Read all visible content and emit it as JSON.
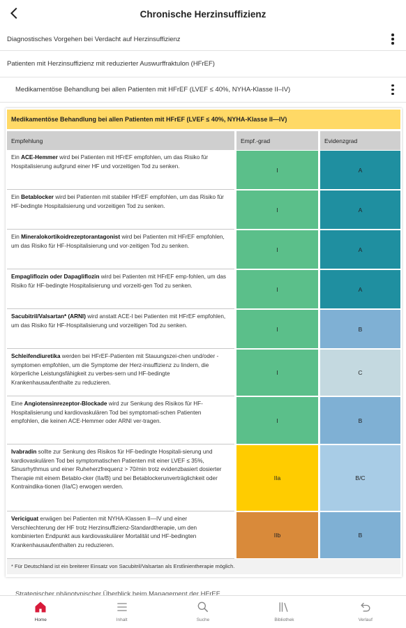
{
  "header": {
    "title": "Chronische Herzinsuffizienz"
  },
  "breadcrumbs": [
    {
      "label": "Diagnostisches Vorgehen bei Verdacht auf Herzinsuffizienz"
    },
    {
      "label": "Patienten mit Herzinsuffizienz mit reduzierter Auswurffraktulon (HFrEF)"
    },
    {
      "label": "Medikamentöse Behandlung bei allen Patienten mit HFrEF (LVEF ≤ 40%, NYHA-Klasse II–IV)"
    }
  ],
  "table": {
    "title": "Medikamentöse Behandlung bei allen Patienten mit HFrEF (LVEF ≤ 40%, NYHA-Klasse II—IV)",
    "headers": [
      "Empfehlung",
      "Empf.-grad",
      "Evidenzgrad"
    ],
    "rows": [
      {
        "bold": "ACE-Hemmer",
        "pre": "Ein ",
        "text": " wird bei Patienten mit HFrEF empfohlen, um das Risiko für Hospitalisierung aufgrund einer HF und vorzeitigen Tod zu senken.",
        "grade": "I",
        "evidence": "A"
      },
      {
        "bold": "Betablocker",
        "pre": "Ein ",
        "text": " wird bei Patienten mit stabiler HFrEF empfohlen, um das Risiko für HF-bedingte Hospitalisierung und vorzeitigen Tod zu senken.",
        "grade": "I",
        "evidence": "A"
      },
      {
        "bold": "Mineralokortikoidrezeptorantagonist",
        "pre": "Ein ",
        "text": " wird bei Patienten mit HFrEF empfohlen, um das Risiko für HF-Hospitalisierung und vor-zeitigen Tod zu senken.",
        "grade": "I",
        "evidence": "A"
      },
      {
        "bold": "Empagliflozin oder Dapagliflozin",
        "pre": "",
        "text": " wird bei Patienten mit HFrEF emp-fohlen, um das Risiko für HF-bedingte Hospitalisierung und vorzeiti-gen Tod zu senken.",
        "grade": "I",
        "evidence": "A"
      },
      {
        "bold": "Sacubitril/Valsartan* (ARNI)",
        "pre": "",
        "text": " wird anstatt ACE-I bei Patienten mit HFrEF empfohlen, um das Risiko für HF-Hospitalisierung und vorzeitigen Tod zu senken.",
        "grade": "I",
        "evidence": "B"
      },
      {
        "bold": "Schleifendiuretika",
        "pre": "",
        "text": " werden bei HFrEF-Patienten mit Stauungszei-chen und/oder -symptomen empfohlen, um die Symptome der Herz-insuffizienz zu lindern, die körperliche Leistungsfähigkeit zu verbes-sern und HF-bedingte Krankenhausaufenthalte zu reduzieren.",
        "grade": "I",
        "evidence": "C"
      },
      {
        "bold": "Angiotensinrezeptor-Blockade",
        "pre": "Eine ",
        "text": " wird zur Senkung des Risikos für HF-Hospitalisierung und kardiovaskulären Tod bei symptomati-schen Patienten empfohlen, die keinen ACE-Hemmer oder ARNI ver-tragen.",
        "grade": "I",
        "evidence": "B"
      },
      {
        "bold": "Ivabradin",
        "pre": "",
        "text": " sollte zur Senkung des Risikos für HF-bedingte Hospitali-sierung und kardiovaskulären Tod bei symptomatischen Patienten mit einer LVEF ≤ 35%, Sinusrhythmus und einer Ruheherzfrequenz > 70/min trotz evidenzbasiert dosierter Therapie mit einem Betablo-cker (IIa/B) und bei Betablockerunverträglichkeit oder Kontraindika-tionen (IIa/C) erwogen werden.",
        "grade": "IIa",
        "evidence": "B/C"
      },
      {
        "bold": "Vericiguat",
        "pre": "",
        "text": " erwägen bei Patienten mit NYHA-Klassen II—IV und einer Verschlechterung der HF trotz Herzinsuffizienz-Standardtherapie, um den kombinierten Endpunkt aus kardiovaskulärer Mortalität und HF-bedingten Krankenhausaufenthalten zu reduzieren.",
        "grade": "IIb",
        "evidence": "B"
      }
    ],
    "footnote": "* Für Deutschland ist ein breiterer Einsatz von Sacubitril/Valsartan als Erstlinientherapie möglich."
  },
  "next_section": {
    "label": "Strategischer phänotypischer Überblick beim Management der HFrEF"
  },
  "colors": {
    "grade_I": "#5bbf8a",
    "grade_IIa": "#ffcc00",
    "grade_IIb": "#d98a3a",
    "evidence_A": "#1f8fa0",
    "evidence_B": "#7fb0d4",
    "evidence_C": "#c4d9e0",
    "evidence_BC": "#a8cce6",
    "title_bg": "#ffd966",
    "accent": "#d81b3a"
  },
  "bottom_nav": [
    {
      "label": "Home",
      "icon": "home-icon",
      "active": true
    },
    {
      "label": "Inhalt",
      "icon": "contents-icon",
      "active": false
    },
    {
      "label": "Suche",
      "icon": "search-icon",
      "active": false
    },
    {
      "label": "Bibliothek",
      "icon": "library-icon",
      "active": false
    },
    {
      "label": "Verlauf",
      "icon": "history-icon",
      "active": false
    }
  ]
}
